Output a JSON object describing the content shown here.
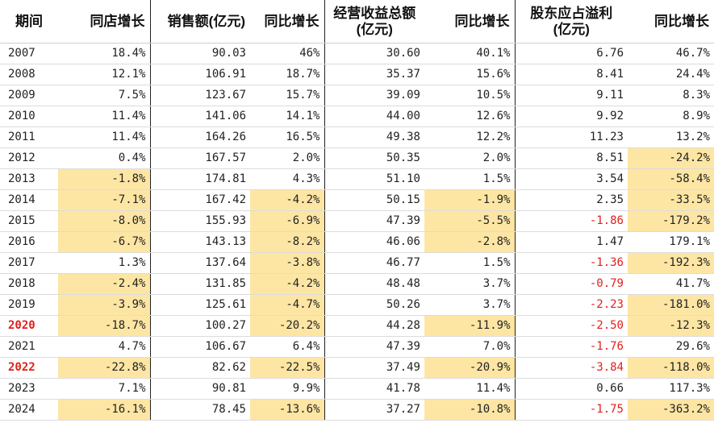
{
  "columns": [
    {
      "key": "period",
      "label": "期间",
      "lines": [
        "期间"
      ]
    },
    {
      "key": "same_store",
      "label": "同店增长",
      "lines": [
        "同店增长"
      ]
    },
    {
      "key": "sales",
      "label": "销售额(亿元)",
      "lines": [
        "销售额(亿元)"
      ]
    },
    {
      "key": "sales_yoy",
      "label": "同比增长",
      "lines": [
        "同比增长"
      ]
    },
    {
      "key": "revenue",
      "label": "经营收益总额(亿元)",
      "lines": [
        "经营收益总额",
        "(亿元)"
      ]
    },
    {
      "key": "revenue_yoy",
      "label": "同比增长",
      "lines": [
        "同比增长"
      ]
    },
    {
      "key": "profit",
      "label": "股东应占溢利(亿元)",
      "lines": [
        "股东应占溢利",
        "(亿元)"
      ]
    },
    {
      "key": "profit_yoy",
      "label": "同比增长",
      "lines": [
        "同比增长"
      ]
    }
  ],
  "colors": {
    "highlight": "#fde6a4",
    "negative_text": "#e0201b",
    "text": "#222222"
  },
  "rows": [
    {
      "period": "2007",
      "period_red": false,
      "same_store": "18.4%",
      "sales": "90.03",
      "sales_yoy": "46%",
      "revenue": "30.60",
      "revenue_yoy": "40.1%",
      "profit": "6.76",
      "profit_yoy": "46.7%",
      "hl": []
    },
    {
      "period": "2008",
      "period_red": false,
      "same_store": "12.1%",
      "sales": "106.91",
      "sales_yoy": "18.7%",
      "revenue": "35.37",
      "revenue_yoy": "15.6%",
      "profit": "8.41",
      "profit_yoy": "24.4%",
      "hl": []
    },
    {
      "period": "2009",
      "period_red": false,
      "same_store": "7.5%",
      "sales": "123.67",
      "sales_yoy": "15.7%",
      "revenue": "39.09",
      "revenue_yoy": "10.5%",
      "profit": "9.11",
      "profit_yoy": "8.3%",
      "hl": []
    },
    {
      "period": "2010",
      "period_red": false,
      "same_store": "11.4%",
      "sales": "141.06",
      "sales_yoy": "14.1%",
      "revenue": "44.00",
      "revenue_yoy": "12.6%",
      "profit": "9.92",
      "profit_yoy": "8.9%",
      "hl": []
    },
    {
      "period": "2011",
      "period_red": false,
      "same_store": "11.4%",
      "sales": "164.26",
      "sales_yoy": "16.5%",
      "revenue": "49.38",
      "revenue_yoy": "12.2%",
      "profit": "11.23",
      "profit_yoy": "13.2%",
      "hl": []
    },
    {
      "period": "2012",
      "period_red": false,
      "same_store": "0.4%",
      "sales": "167.57",
      "sales_yoy": "2.0%",
      "revenue": "50.35",
      "revenue_yoy": "2.0%",
      "profit": "8.51",
      "profit_yoy": "-24.2%",
      "hl": [
        "profit_yoy"
      ]
    },
    {
      "period": "2013",
      "period_red": false,
      "same_store": "-1.8%",
      "sales": "174.81",
      "sales_yoy": "4.3%",
      "revenue": "51.10",
      "revenue_yoy": "1.5%",
      "profit": "3.54",
      "profit_yoy": "-58.4%",
      "hl": [
        "same_store",
        "profit_yoy"
      ]
    },
    {
      "period": "2014",
      "period_red": false,
      "same_store": "-7.1%",
      "sales": "167.42",
      "sales_yoy": "-4.2%",
      "revenue": "50.15",
      "revenue_yoy": "-1.9%",
      "profit": "2.35",
      "profit_yoy": "-33.5%",
      "hl": [
        "same_store",
        "sales_yoy",
        "revenue_yoy",
        "profit_yoy"
      ]
    },
    {
      "period": "2015",
      "period_red": false,
      "same_store": "-8.0%",
      "sales": "155.93",
      "sales_yoy": "-6.9%",
      "revenue": "47.39",
      "revenue_yoy": "-5.5%",
      "profit": "-1.86",
      "profit_yoy": "-179.2%",
      "hl": [
        "same_store",
        "sales_yoy",
        "revenue_yoy",
        "profit_yoy"
      ]
    },
    {
      "period": "2016",
      "period_red": false,
      "same_store": "-6.7%",
      "sales": "143.13",
      "sales_yoy": "-8.2%",
      "revenue": "46.06",
      "revenue_yoy": "-2.8%",
      "profit": "1.47",
      "profit_yoy": "179.1%",
      "hl": [
        "same_store",
        "sales_yoy",
        "revenue_yoy"
      ]
    },
    {
      "period": "2017",
      "period_red": false,
      "same_store": "1.3%",
      "sales": "137.64",
      "sales_yoy": "-3.8%",
      "revenue": "46.77",
      "revenue_yoy": "1.5%",
      "profit": "-1.36",
      "profit_yoy": "-192.3%",
      "hl": [
        "sales_yoy",
        "profit_yoy"
      ]
    },
    {
      "period": "2018",
      "period_red": false,
      "same_store": "-2.4%",
      "sales": "131.85",
      "sales_yoy": "-4.2%",
      "revenue": "48.48",
      "revenue_yoy": "3.7%",
      "profit": "-0.79",
      "profit_yoy": "41.7%",
      "hl": [
        "same_store",
        "sales_yoy"
      ]
    },
    {
      "period": "2019",
      "period_red": false,
      "same_store": "-3.9%",
      "sales": "125.61",
      "sales_yoy": "-4.7%",
      "revenue": "50.26",
      "revenue_yoy": "3.7%",
      "profit": "-2.23",
      "profit_yoy": "-181.0%",
      "hl": [
        "same_store",
        "sales_yoy",
        "profit_yoy"
      ]
    },
    {
      "period": "2020",
      "period_red": true,
      "same_store": "-18.7%",
      "sales": "100.27",
      "sales_yoy": "-20.2%",
      "revenue": "44.28",
      "revenue_yoy": "-11.9%",
      "profit": "-2.50",
      "profit_yoy": "-12.3%",
      "hl": [
        "same_store",
        "sales_yoy",
        "revenue_yoy",
        "profit_yoy"
      ]
    },
    {
      "period": "2021",
      "period_red": false,
      "same_store": "4.7%",
      "sales": "106.67",
      "sales_yoy": "6.4%",
      "revenue": "47.39",
      "revenue_yoy": "7.0%",
      "profit": "-1.76",
      "profit_yoy": "29.6%",
      "hl": []
    },
    {
      "period": "2022",
      "period_red": true,
      "same_store": "-22.8%",
      "sales": "82.62",
      "sales_yoy": "-22.5%",
      "revenue": "37.49",
      "revenue_yoy": "-20.9%",
      "profit": "-3.84",
      "profit_yoy": "-118.0%",
      "hl": [
        "same_store",
        "sales_yoy",
        "revenue_yoy",
        "profit_yoy"
      ]
    },
    {
      "period": "2023",
      "period_red": false,
      "same_store": "7.1%",
      "sales": "90.81",
      "sales_yoy": "9.9%",
      "revenue": "41.78",
      "revenue_yoy": "11.4%",
      "profit": "0.66",
      "profit_yoy": "117.3%",
      "hl": []
    },
    {
      "period": "2024",
      "period_red": false,
      "same_store": "-16.1%",
      "sales": "78.45",
      "sales_yoy": "-13.6%",
      "revenue": "37.27",
      "revenue_yoy": "-10.8%",
      "profit": "-1.75",
      "profit_yoy": "-363.2%",
      "hl": [
        "same_store",
        "sales_yoy",
        "revenue_yoy",
        "profit_yoy"
      ]
    }
  ]
}
